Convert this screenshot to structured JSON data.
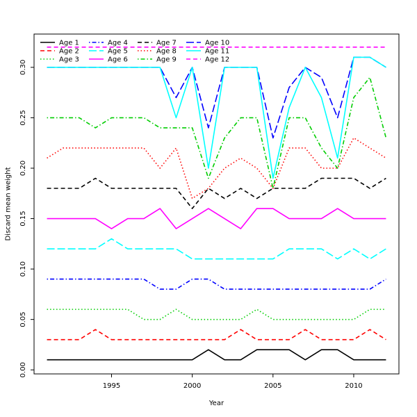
{
  "chart_data": {
    "type": "line",
    "title": "",
    "xlabel": "Year",
    "ylabel": "Discard mean weight",
    "xlim": [
      1990.2,
      2012.8
    ],
    "ylim": [
      -0.004,
      0.333
    ],
    "x_ticks": [
      1995,
      2000,
      2005,
      2010
    ],
    "y_ticks": [
      0.0,
      0.05,
      0.1,
      0.15,
      0.2,
      0.25,
      0.3
    ],
    "y_tick_labels": [
      "0.00",
      "0.05",
      "0.10",
      "0.15",
      "0.20",
      "0.25",
      "0.30"
    ],
    "x": [
      1991,
      1992,
      1993,
      1994,
      1995,
      1996,
      1997,
      1998,
      1999,
      2000,
      2001,
      2002,
      2003,
      2004,
      2005,
      2006,
      2007,
      2008,
      2009,
      2010,
      2011,
      2012
    ],
    "legend_position": "top-left",
    "series": [
      {
        "name": "Age 1",
        "color": "#000000",
        "dash": "solid",
        "values": [
          0.01,
          0.01,
          0.01,
          0.01,
          0.01,
          0.01,
          0.01,
          0.01,
          0.01,
          0.01,
          0.02,
          0.01,
          0.01,
          0.02,
          0.02,
          0.02,
          0.01,
          0.02,
          0.02,
          0.01,
          0.01,
          0.01
        ]
      },
      {
        "name": "Age 2",
        "color": "#ff0000",
        "dash": "dashed",
        "values": [
          0.03,
          0.03,
          0.03,
          0.04,
          0.03,
          0.03,
          0.03,
          0.03,
          0.03,
          0.03,
          0.03,
          0.03,
          0.04,
          0.03,
          0.03,
          0.03,
          0.04,
          0.03,
          0.03,
          0.03,
          0.04,
          0.03
        ]
      },
      {
        "name": "Age 3",
        "color": "#00cd00",
        "dash": "dotted",
        "values": [
          0.06,
          0.06,
          0.06,
          0.06,
          0.06,
          0.06,
          0.05,
          0.05,
          0.06,
          0.05,
          0.05,
          0.05,
          0.05,
          0.06,
          0.05,
          0.05,
          0.05,
          0.05,
          0.05,
          0.05,
          0.06,
          0.06
        ]
      },
      {
        "name": "Age 4",
        "color": "#0000ff",
        "dash": "dotdash",
        "values": [
          0.09,
          0.09,
          0.09,
          0.09,
          0.09,
          0.09,
          0.09,
          0.08,
          0.08,
          0.09,
          0.09,
          0.08,
          0.08,
          0.08,
          0.08,
          0.08,
          0.08,
          0.08,
          0.08,
          0.08,
          0.08,
          0.09
        ]
      },
      {
        "name": "Age 5",
        "color": "#00ffff",
        "dash": "longdash",
        "values": [
          0.12,
          0.12,
          0.12,
          0.12,
          0.13,
          0.12,
          0.12,
          0.12,
          0.12,
          0.11,
          0.11,
          0.11,
          0.11,
          0.11,
          0.11,
          0.12,
          0.12,
          0.12,
          0.11,
          0.12,
          0.11,
          0.12
        ]
      },
      {
        "name": "Age 6",
        "color": "#ff00ff",
        "dash": "solid",
        "values": [
          0.15,
          0.15,
          0.15,
          0.15,
          0.14,
          0.15,
          0.15,
          0.16,
          0.14,
          0.15,
          0.16,
          0.15,
          0.14,
          0.16,
          0.16,
          0.15,
          0.15,
          0.15,
          0.16,
          0.15,
          0.15,
          0.15
        ]
      },
      {
        "name": "Age 7",
        "color": "#000000",
        "dash": "dashed",
        "values": [
          0.18,
          0.18,
          0.18,
          0.19,
          0.18,
          0.18,
          0.18,
          0.18,
          0.18,
          0.16,
          0.18,
          0.17,
          0.18,
          0.17,
          0.18,
          0.18,
          0.18,
          0.19,
          0.19,
          0.19,
          0.18,
          0.19
        ]
      },
      {
        "name": "Age 8",
        "color": "#ff0000",
        "dash": "dotted",
        "values": [
          0.21,
          0.22,
          0.22,
          0.22,
          0.22,
          0.22,
          0.22,
          0.2,
          0.22,
          0.17,
          0.18,
          0.2,
          0.21,
          0.2,
          0.18,
          0.22,
          0.22,
          0.2,
          0.2,
          0.23,
          0.22,
          0.21
        ]
      },
      {
        "name": "Age 9",
        "color": "#00cd00",
        "dash": "dotdash",
        "values": [
          0.25,
          0.25,
          0.25,
          0.24,
          0.25,
          0.25,
          0.25,
          0.24,
          0.24,
          0.24,
          0.19,
          0.23,
          0.25,
          0.25,
          0.18,
          0.25,
          0.25,
          0.22,
          0.2,
          0.27,
          0.29,
          0.23
        ]
      },
      {
        "name": "Age 10",
        "color": "#0000ff",
        "dash": "longdash",
        "values": [
          0.3,
          0.3,
          0.3,
          0.3,
          0.3,
          0.3,
          0.3,
          0.3,
          0.27,
          0.3,
          0.24,
          0.3,
          0.3,
          0.3,
          0.23,
          0.28,
          0.3,
          0.29,
          0.25,
          0.31,
          0.31,
          0.3
        ]
      },
      {
        "name": "Age 11",
        "color": "#00ffff",
        "dash": "solid",
        "values": [
          0.3,
          0.3,
          0.3,
          0.3,
          0.3,
          0.3,
          0.3,
          0.3,
          0.25,
          0.3,
          0.2,
          0.3,
          0.3,
          0.3,
          0.19,
          0.26,
          0.3,
          0.27,
          0.21,
          0.31,
          0.31,
          0.3
        ]
      },
      {
        "name": "Age 12",
        "color": "#ff00ff",
        "dash": "dashed",
        "values": [
          0.32,
          0.32,
          0.32,
          0.32,
          0.32,
          0.32,
          0.32,
          0.32,
          0.32,
          0.32,
          0.32,
          0.32,
          0.32,
          0.32,
          0.32,
          0.32,
          0.32,
          0.32,
          0.32,
          0.32,
          0.32,
          0.32
        ]
      }
    ]
  }
}
